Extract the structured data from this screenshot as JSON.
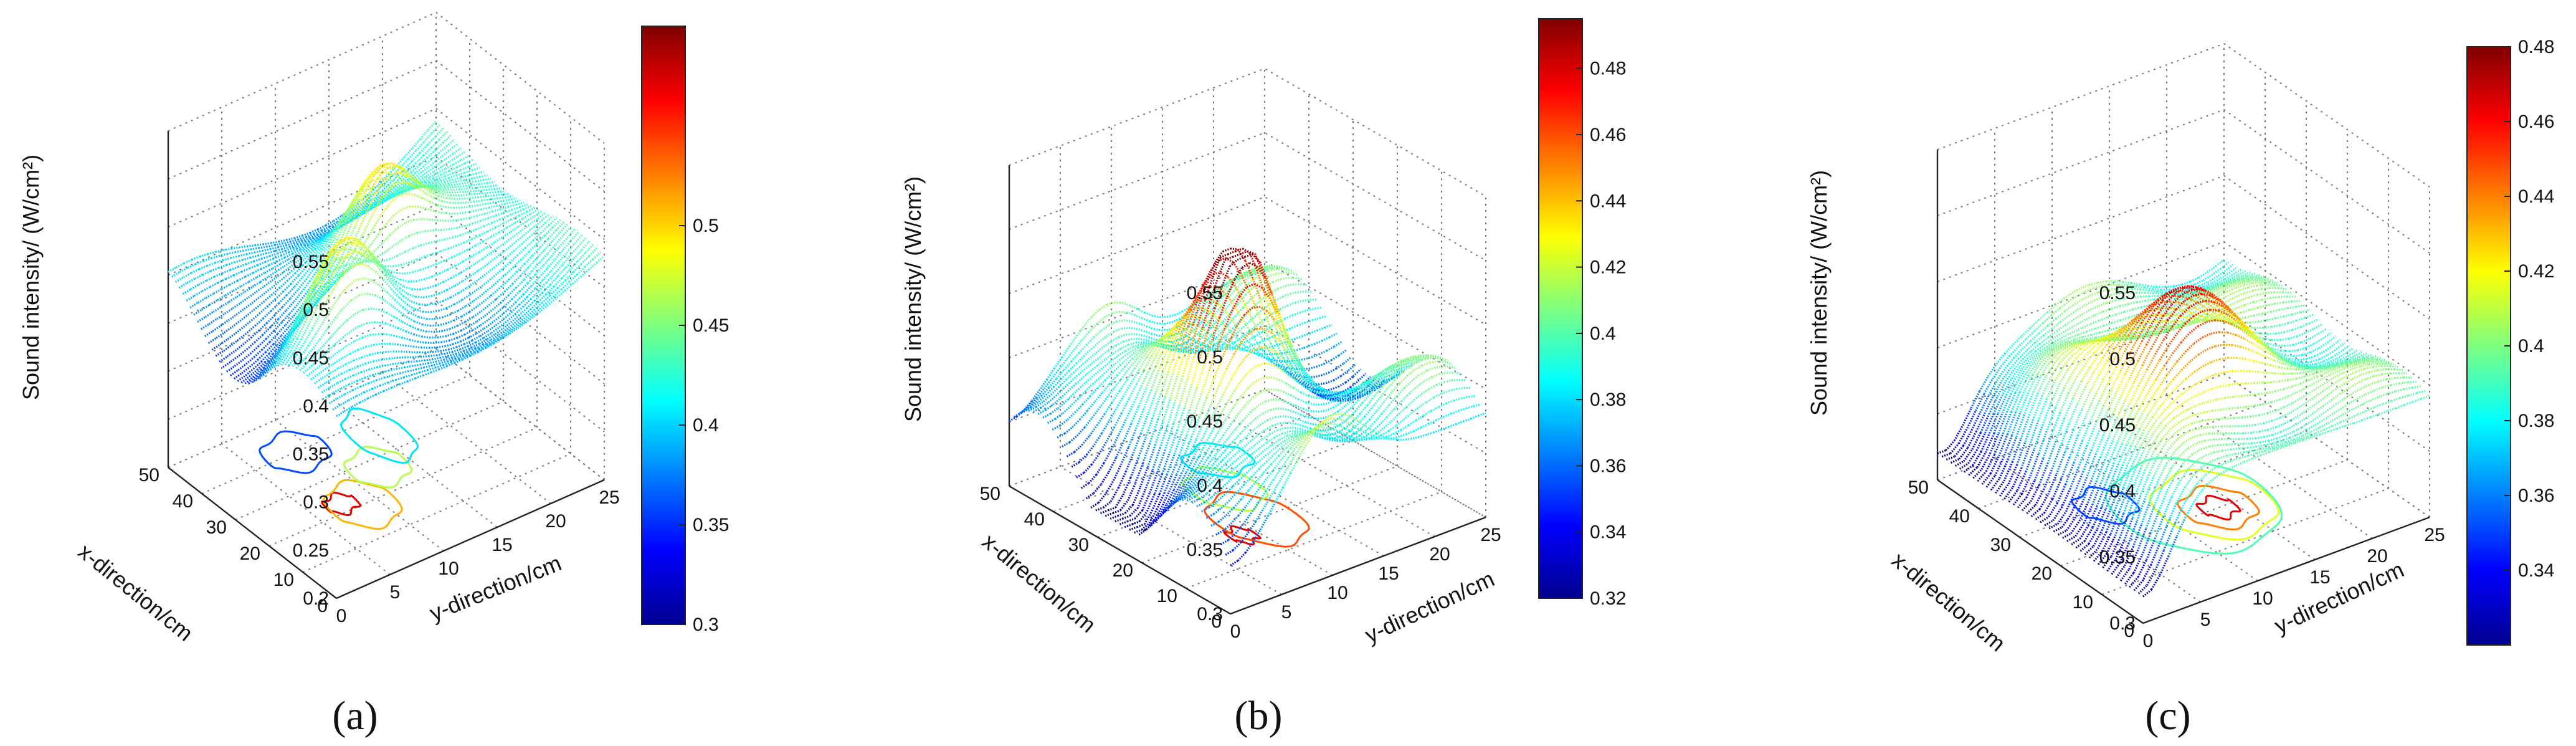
{
  "figure": {
    "panels": [
      {
        "id": "a",
        "label": "(a)"
      },
      {
        "id": "b",
        "label": "(b)"
      },
      {
        "id": "c",
        "label": "(c)"
      }
    ]
  },
  "chart_data": [
    {
      "type": "surface3d",
      "panel": "(a)",
      "xlabel": "x-direction/cm",
      "ylabel": "y-direction/cm",
      "zlabel": "Sound intensity/ (W/cm²)",
      "x_ticks": [
        0,
        10,
        20,
        30,
        40,
        50
      ],
      "y_ticks": [
        0,
        5,
        10,
        15,
        20,
        25
      ],
      "z_ticks": [
        0.2,
        0.25,
        0.3,
        0.35,
        0.4,
        0.45,
        0.5,
        0.55
      ],
      "xlim": [
        0,
        50
      ],
      "ylim": [
        0,
        25
      ],
      "zlim": [
        0.2,
        0.55
      ],
      "colorbar": {
        "ticks": [
          0.3,
          0.35,
          0.4,
          0.45,
          0.5
        ],
        "range": [
          0.3,
          0.6
        ],
        "colormap": "jet"
      },
      "surface_z_range": [
        0.3,
        0.6
      ],
      "contour_projection": true
    },
    {
      "type": "surface3d",
      "panel": "(b)",
      "xlabel": "x-direction/cm",
      "ylabel": "y-direction/cm",
      "zlabel": "Sound intensity/ (W/cm²)",
      "x_ticks": [
        0,
        10,
        20,
        30,
        40,
        50
      ],
      "y_ticks": [
        0,
        5,
        10,
        15,
        20,
        25
      ],
      "z_ticks": [
        0.3,
        0.35,
        0.4,
        0.45,
        0.5,
        0.55
      ],
      "xlim": [
        0,
        50
      ],
      "ylim": [
        0,
        25
      ],
      "zlim": [
        0.3,
        0.55
      ],
      "colorbar": {
        "ticks": [
          0.32,
          0.34,
          0.36,
          0.38,
          0.4,
          0.42,
          0.44,
          0.46,
          0.48
        ],
        "range": [
          0.32,
          0.495
        ],
        "colormap": "jet"
      },
      "surface_z_range": [
        0.32,
        0.495
      ],
      "contour_projection": true
    },
    {
      "type": "surface3d",
      "panel": "(c)",
      "xlabel": "x-direction/cm",
      "ylabel": "y-direction/cm",
      "zlabel": "Sound intensity/ (W/cm²)",
      "x_ticks": [
        0,
        10,
        20,
        30,
        40,
        50
      ],
      "y_ticks": [
        0,
        5,
        10,
        15,
        20,
        25
      ],
      "z_ticks": [
        0.3,
        0.35,
        0.4,
        0.45,
        0.5,
        0.55
      ],
      "xlim": [
        0,
        50
      ],
      "ylim": [
        0,
        25
      ],
      "zlim": [
        0.3,
        0.55
      ],
      "colorbar": {
        "ticks": [
          0.34,
          0.36,
          0.38,
          0.4,
          0.42,
          0.44,
          0.46,
          0.48
        ],
        "range": [
          0.32,
          0.48
        ],
        "colormap": "jet"
      },
      "surface_z_range": [
        0.32,
        0.48
      ],
      "contour_projection": true
    }
  ]
}
